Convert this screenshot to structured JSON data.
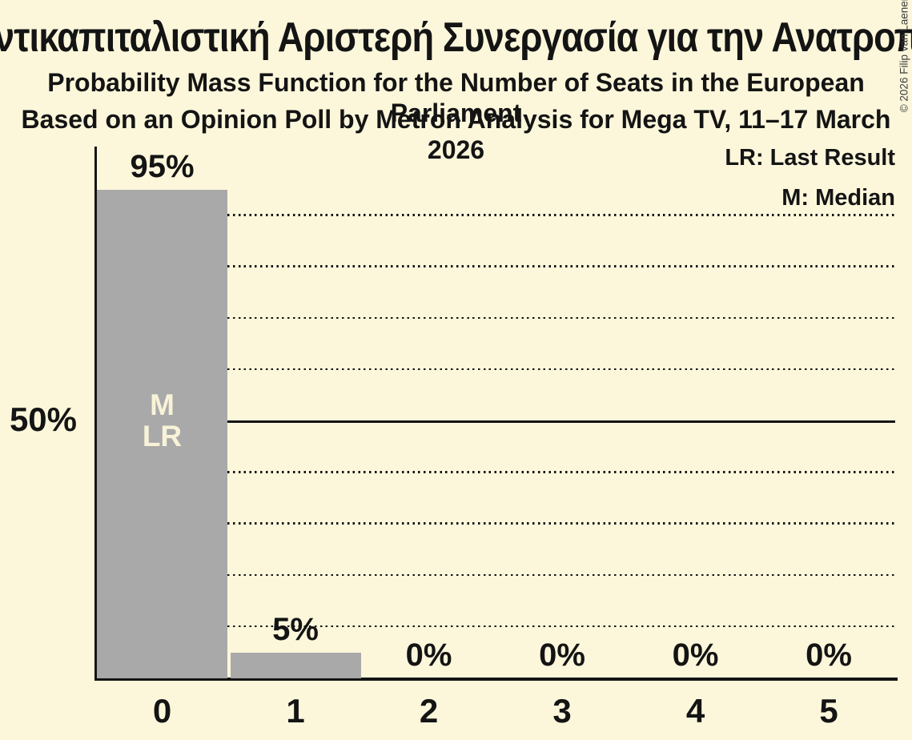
{
  "copyright": "© 2026 Filip van Laenen",
  "colors": {
    "background": "#FCF7DB",
    "bar": "#A9A9A9",
    "ink": "#141414",
    "bar_annotation": "#F8F3D8",
    "copyright_ink": "#3C3C3C"
  },
  "legend": {
    "last_result": "LR: Last Result",
    "median": "M: Median"
  },
  "chart_data": {
    "type": "bar",
    "title": "Αντικαπιταλιστική Αριστερή Συνεργασία για την Ανατροπή",
    "subtitle": "Probability Mass Function for the Number of Seats in the European Parliament",
    "subtitle2": "Based on an Opinion Poll by Metron Analysis for Mega TV, 11–17 March 2026",
    "xlabel": "",
    "ylabel": "",
    "categories": [
      "0",
      "1",
      "2",
      "3",
      "4",
      "5"
    ],
    "values": [
      95,
      5,
      0,
      0,
      0,
      0
    ],
    "value_labels": [
      "95%",
      "5%",
      "0%",
      "0%",
      "0%",
      "0%"
    ],
    "bar_annotations": [
      [
        "M",
        "LR"
      ],
      [],
      [],
      [],
      [],
      []
    ],
    "y_tick_labels": [
      "50%"
    ],
    "ylim": [
      0,
      100
    ],
    "gridline_percents": [
      10,
      20,
      30,
      40,
      60,
      70,
      80,
      90
    ],
    "solid_gridline_percent": 50,
    "grid": "dotted-horizontal",
    "legend_entries": [
      "LR: Last Result",
      "M: Median"
    ],
    "legend_position": "top-right"
  }
}
